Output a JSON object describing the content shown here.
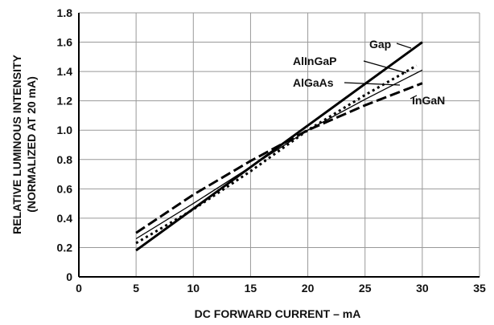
{
  "chart_data": {
    "type": "line",
    "title": "",
    "xlabel": "DC FORWARD CURRENT – mA",
    "ylabel_lines": [
      "RELATIVE LUMINOUS INTENSITY",
      "(NORMALIZED AT 20 mA)"
    ],
    "xlim": [
      0,
      35
    ],
    "ylim": [
      0,
      1.8
    ],
    "x_ticks": [
      0,
      5,
      10,
      15,
      20,
      25,
      30,
      35
    ],
    "y_ticks": [
      0,
      0.2,
      0.4,
      0.6,
      0.8,
      1.0,
      1.2,
      1.4,
      1.6,
      1.8
    ],
    "y_tick_labels": [
      "0",
      "0.2",
      "0.4",
      "0.6",
      "0.8",
      "1.0",
      "1.2",
      "1.4",
      "1.6",
      "1.8"
    ],
    "grid": true,
    "series": [
      {
        "name": "Gap",
        "style": "solid-thick",
        "x": [
          5,
          30
        ],
        "y": [
          0.18,
          1.6
        ]
      },
      {
        "name": "AlInGaP",
        "style": "dotted",
        "x": [
          5,
          10,
          15,
          20,
          25,
          29.5
        ],
        "y": [
          0.23,
          0.46,
          0.72,
          1.0,
          1.24,
          1.44
        ]
      },
      {
        "name": "AlGaAs",
        "style": "solid-thin",
        "x": [
          5,
          10,
          15,
          20,
          25,
          30
        ],
        "y": [
          0.26,
          0.5,
          0.75,
          1.0,
          1.21,
          1.41
        ]
      },
      {
        "name": "InGaN",
        "style": "dashed",
        "x": [
          5,
          10,
          15,
          20,
          25,
          30
        ],
        "y": [
          0.3,
          0.56,
          0.79,
          1.0,
          1.17,
          1.32
        ]
      }
    ]
  }
}
